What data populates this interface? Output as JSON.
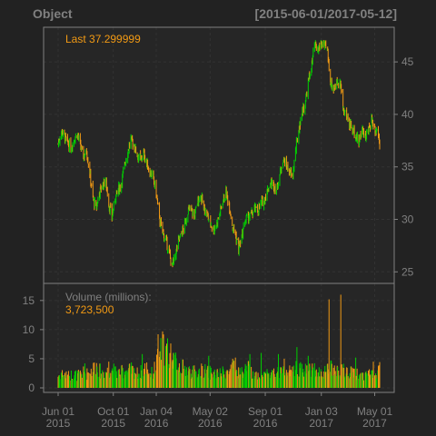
{
  "chart_data": {
    "type": "candlestick",
    "title_left": "Object",
    "title_right": "[2015-06-01/2017-05-12]",
    "last_label": "Last 37.299999",
    "volume_title": "Volume (millions):",
    "volume_value": "3,723,500",
    "colors": {
      "up": "#00d000",
      "down": "#f29a14",
      "panel": "#222222",
      "grid": "#333333",
      "axis": "#808080"
    },
    "price_axis": {
      "ticks": [
        25,
        30,
        35,
        40,
        45
      ],
      "ylim": [
        23.9,
        48.3
      ]
    },
    "volume_axis": {
      "ticks": [
        0,
        5,
        10,
        15
      ],
      "ylim": [
        0,
        17
      ]
    },
    "x_axis": {
      "range": [
        "2015-06-01",
        "2017-05-12"
      ],
      "ticks": [
        {
          "date": "2015-06-01",
          "line1": "Jun 01",
          "line2": "2015"
        },
        {
          "date": "2015-10-01",
          "line1": "Oct 01",
          "line2": "2015"
        },
        {
          "date": "2016-01-04",
          "line1": "Jan 04",
          "line2": "2016"
        },
        {
          "date": "2016-05-02",
          "line1": "May 02",
          "line2": "2016"
        },
        {
          "date": "2016-09-01",
          "line1": "Sep 01",
          "line2": "2016"
        },
        {
          "date": "2017-01-03",
          "line1": "Jan 03",
          "line2": "2017"
        },
        {
          "date": "2017-05-01",
          "line1": "May 01",
          "line2": "2017"
        }
      ]
    },
    "close_series": [
      [
        "2015-06-01",
        37.2
      ],
      [
        "2015-06-08",
        38.4
      ],
      [
        "2015-06-15",
        37.9
      ],
      [
        "2015-06-22",
        37.2
      ],
      [
        "2015-06-29",
        36.8
      ],
      [
        "2015-07-06",
        37.6
      ],
      [
        "2015-07-13",
        38.2
      ],
      [
        "2015-07-20",
        37.0
      ],
      [
        "2015-07-27",
        36.0
      ],
      [
        "2015-08-03",
        36.5
      ],
      [
        "2015-08-10",
        34.5
      ],
      [
        "2015-08-17",
        32.0
      ],
      [
        "2015-08-24",
        31.0
      ],
      [
        "2015-08-31",
        32.6
      ],
      [
        "2015-09-07",
        33.2
      ],
      [
        "2015-09-14",
        33.8
      ],
      [
        "2015-09-21",
        31.5
      ],
      [
        "2015-09-28",
        30.2
      ],
      [
        "2015-10-05",
        32.0
      ],
      [
        "2015-10-12",
        32.8
      ],
      [
        "2015-10-19",
        33.5
      ],
      [
        "2015-10-26",
        35.2
      ],
      [
        "2015-11-02",
        36.5
      ],
      [
        "2015-11-09",
        37.6
      ],
      [
        "2015-11-16",
        37.0
      ],
      [
        "2015-11-23",
        36.2
      ],
      [
        "2015-11-30",
        35.6
      ],
      [
        "2015-12-07",
        36.3
      ],
      [
        "2015-12-14",
        35.3
      ],
      [
        "2015-12-21",
        34.5
      ],
      [
        "2015-12-28",
        34.0
      ],
      [
        "2016-01-04",
        32.5
      ],
      [
        "2016-01-11",
        30.0
      ],
      [
        "2016-01-18",
        28.8
      ],
      [
        "2016-01-25",
        28.0
      ],
      [
        "2016-02-01",
        27.0
      ],
      [
        "2016-02-08",
        25.5
      ],
      [
        "2016-02-15",
        26.5
      ],
      [
        "2016-02-22",
        28.0
      ],
      [
        "2016-02-29",
        28.6
      ],
      [
        "2016-03-07",
        29.5
      ],
      [
        "2016-03-14",
        30.8
      ],
      [
        "2016-03-21",
        31.0
      ],
      [
        "2016-03-28",
        30.2
      ],
      [
        "2016-04-04",
        31.6
      ],
      [
        "2016-04-11",
        32.4
      ],
      [
        "2016-04-18",
        31.0
      ],
      [
        "2016-04-25",
        30.4
      ],
      [
        "2016-05-02",
        29.8
      ],
      [
        "2016-05-09",
        29.0
      ],
      [
        "2016-05-16",
        29.5
      ],
      [
        "2016-05-23",
        30.5
      ],
      [
        "2016-05-30",
        31.8
      ],
      [
        "2016-06-06",
        32.5
      ],
      [
        "2016-06-13",
        31.5
      ],
      [
        "2016-06-20",
        29.5
      ],
      [
        "2016-06-27",
        28.6
      ],
      [
        "2016-07-04",
        27.2
      ],
      [
        "2016-07-11",
        28.2
      ],
      [
        "2016-07-18",
        29.8
      ],
      [
        "2016-07-25",
        30.2
      ],
      [
        "2016-08-01",
        30.4
      ],
      [
        "2016-08-08",
        31.0
      ],
      [
        "2016-08-15",
        30.8
      ],
      [
        "2016-08-22",
        31.5
      ],
      [
        "2016-08-29",
        31.8
      ],
      [
        "2016-09-05",
        32.6
      ],
      [
        "2016-09-12",
        33.5
      ],
      [
        "2016-09-19",
        33.2
      ],
      [
        "2016-09-26",
        32.8
      ],
      [
        "2016-10-03",
        34.2
      ],
      [
        "2016-10-10",
        35.8
      ],
      [
        "2016-10-17",
        35.2
      ],
      [
        "2016-10-24",
        34.5
      ],
      [
        "2016-10-31",
        34.0
      ],
      [
        "2016-11-07",
        36.5
      ],
      [
        "2016-11-14",
        38.5
      ],
      [
        "2016-11-21",
        40.2
      ],
      [
        "2016-11-28",
        41.0
      ],
      [
        "2016-12-05",
        43.0
      ],
      [
        "2016-12-12",
        44.5
      ],
      [
        "2016-12-19",
        46.5
      ],
      [
        "2016-12-26",
        46.0
      ],
      [
        "2017-01-02",
        46.8
      ],
      [
        "2017-01-09",
        46.5
      ],
      [
        "2017-01-16",
        46.2
      ],
      [
        "2017-01-23",
        43.2
      ],
      [
        "2017-01-30",
        42.5
      ],
      [
        "2017-02-06",
        43.0
      ],
      [
        "2017-02-13",
        43.4
      ],
      [
        "2017-02-20",
        40.5
      ],
      [
        "2017-02-27",
        40.0
      ],
      [
        "2017-03-06",
        39.2
      ],
      [
        "2017-03-13",
        38.5
      ],
      [
        "2017-03-20",
        38.2
      ],
      [
        "2017-03-27",
        37.2
      ],
      [
        "2017-04-03",
        38.8
      ],
      [
        "2017-04-10",
        37.8
      ],
      [
        "2017-04-17",
        38.4
      ],
      [
        "2017-04-24",
        39.6
      ],
      [
        "2017-05-01",
        38.6
      ],
      [
        "2017-05-08",
        38.5
      ],
      [
        "2017-05-12",
        37.3
      ]
    ],
    "volume_series": [
      [
        "2015-06-01",
        2.0
      ],
      [
        "2015-06-08",
        2.5
      ],
      [
        "2015-06-15",
        2.3
      ],
      [
        "2015-06-22",
        2.0
      ],
      [
        "2015-06-29",
        2.2
      ],
      [
        "2015-07-06",
        2.4
      ],
      [
        "2015-07-13",
        2.1
      ],
      [
        "2015-07-20",
        2.3
      ],
      [
        "2015-07-27",
        2.6
      ],
      [
        "2015-08-03",
        2.4
      ],
      [
        "2015-08-10",
        2.8
      ],
      [
        "2015-08-17",
        3.2
      ],
      [
        "2015-08-24",
        4.0
      ],
      [
        "2015-08-31",
        3.0
      ],
      [
        "2015-09-07",
        2.6
      ],
      [
        "2015-09-14",
        2.7
      ],
      [
        "2015-09-21",
        3.0
      ],
      [
        "2015-09-28",
        3.2
      ],
      [
        "2015-10-05",
        2.8
      ],
      [
        "2015-10-12",
        2.6
      ],
      [
        "2015-10-19",
        2.7
      ],
      [
        "2015-10-26",
        2.9
      ],
      [
        "2015-11-02",
        3.0
      ],
      [
        "2015-11-09",
        3.1
      ],
      [
        "2015-11-16",
        2.8
      ],
      [
        "2015-11-23",
        2.5
      ],
      [
        "2015-11-30",
        2.7
      ],
      [
        "2015-12-07",
        3.0
      ],
      [
        "2015-12-14",
        3.6
      ],
      [
        "2015-12-21",
        2.4
      ],
      [
        "2015-12-28",
        2.6
      ],
      [
        "2016-01-04",
        4.2
      ],
      [
        "2016-01-11",
        5.5
      ],
      [
        "2016-01-18",
        7.0
      ],
      [
        "2016-01-25",
        6.0
      ],
      [
        "2016-02-01",
        5.2
      ],
      [
        "2016-02-08",
        6.5
      ],
      [
        "2016-02-15",
        4.6
      ],
      [
        "2016-02-22",
        4.0
      ],
      [
        "2016-02-29",
        3.6
      ],
      [
        "2016-03-07",
        3.2
      ],
      [
        "2016-03-14",
        3.0
      ],
      [
        "2016-03-21",
        2.8
      ],
      [
        "2016-03-28",
        2.7
      ],
      [
        "2016-04-04",
        2.6
      ],
      [
        "2016-04-11",
        2.9
      ],
      [
        "2016-04-18",
        3.1
      ],
      [
        "2016-04-25",
        2.7
      ],
      [
        "2016-05-02",
        2.6
      ],
      [
        "2016-05-09",
        2.5
      ],
      [
        "2016-05-16",
        2.4
      ],
      [
        "2016-05-23",
        2.3
      ],
      [
        "2016-05-30",
        2.6
      ],
      [
        "2016-06-06",
        2.8
      ],
      [
        "2016-06-13",
        2.6
      ],
      [
        "2016-06-20",
        3.6
      ],
      [
        "2016-06-27",
        3.0
      ],
      [
        "2016-07-04",
        2.8
      ],
      [
        "2016-07-11",
        2.6
      ],
      [
        "2016-07-18",
        3.0
      ],
      [
        "2016-07-25",
        3.4
      ],
      [
        "2016-08-01",
        2.6
      ],
      [
        "2016-08-08",
        2.4
      ],
      [
        "2016-08-15",
        2.3
      ],
      [
        "2016-08-22",
        2.2
      ],
      [
        "2016-08-29",
        2.3
      ],
      [
        "2016-09-05",
        2.5
      ],
      [
        "2016-09-12",
        2.6
      ],
      [
        "2016-09-19",
        2.4
      ],
      [
        "2016-09-26",
        2.5
      ],
      [
        "2016-10-03",
        2.6
      ],
      [
        "2016-10-10",
        2.8
      ],
      [
        "2016-10-17",
        2.5
      ],
      [
        "2016-10-24",
        2.7
      ],
      [
        "2016-10-31",
        2.6
      ],
      [
        "2016-11-07",
        3.6
      ],
      [
        "2016-11-14",
        3.4
      ],
      [
        "2016-11-21",
        3.0
      ],
      [
        "2016-11-28",
        3.3
      ],
      [
        "2016-12-05",
        3.1
      ],
      [
        "2016-12-12",
        3.4
      ],
      [
        "2016-12-19",
        3.0
      ],
      [
        "2016-12-26",
        2.4
      ],
      [
        "2017-01-02",
        2.8
      ],
      [
        "2017-01-09",
        2.6
      ],
      [
        "2017-01-16",
        2.9
      ],
      [
        "2017-01-23",
        3.4
      ],
      [
        "2017-01-30",
        3.0
      ],
      [
        "2017-02-06",
        2.8
      ],
      [
        "2017-02-13",
        2.6
      ],
      [
        "2017-02-20",
        3.2
      ],
      [
        "2017-02-27",
        2.6
      ],
      [
        "2017-03-06",
        2.5
      ],
      [
        "2017-03-13",
        2.7
      ],
      [
        "2017-03-20",
        2.4
      ],
      [
        "2017-03-27",
        2.3
      ],
      [
        "2017-04-03",
        2.2
      ],
      [
        "2017-04-10",
        2.4
      ],
      [
        "2017-04-17",
        2.3
      ],
      [
        "2017-04-24",
        2.5
      ],
      [
        "2017-05-01",
        2.6
      ],
      [
        "2017-05-08",
        2.9
      ],
      [
        "2017-05-12",
        3.7
      ]
    ],
    "volume_spikes": [
      [
        "2015-07-30",
        4.2
      ],
      [
        "2015-09-21",
        4.5
      ],
      [
        "2015-12-04",
        5.8
      ],
      [
        "2016-01-08",
        9.2
      ],
      [
        "2016-01-29",
        8.5
      ],
      [
        "2016-02-12",
        6.0
      ],
      [
        "2016-04-29",
        5.5
      ],
      [
        "2016-06-27",
        5.2
      ],
      [
        "2016-07-29",
        5.8
      ],
      [
        "2016-08-23",
        6.0
      ],
      [
        "2016-09-30",
        5.8
      ],
      [
        "2016-10-13",
        5.0
      ],
      [
        "2016-11-10",
        7.0
      ],
      [
        "2016-12-05",
        5.5
      ],
      [
        "2017-01-20",
        15.2
      ],
      [
        "2017-02-15",
        16.0
      ],
      [
        "2017-03-20",
        5.2
      ],
      [
        "2017-04-28",
        4.5
      ]
    ]
  }
}
